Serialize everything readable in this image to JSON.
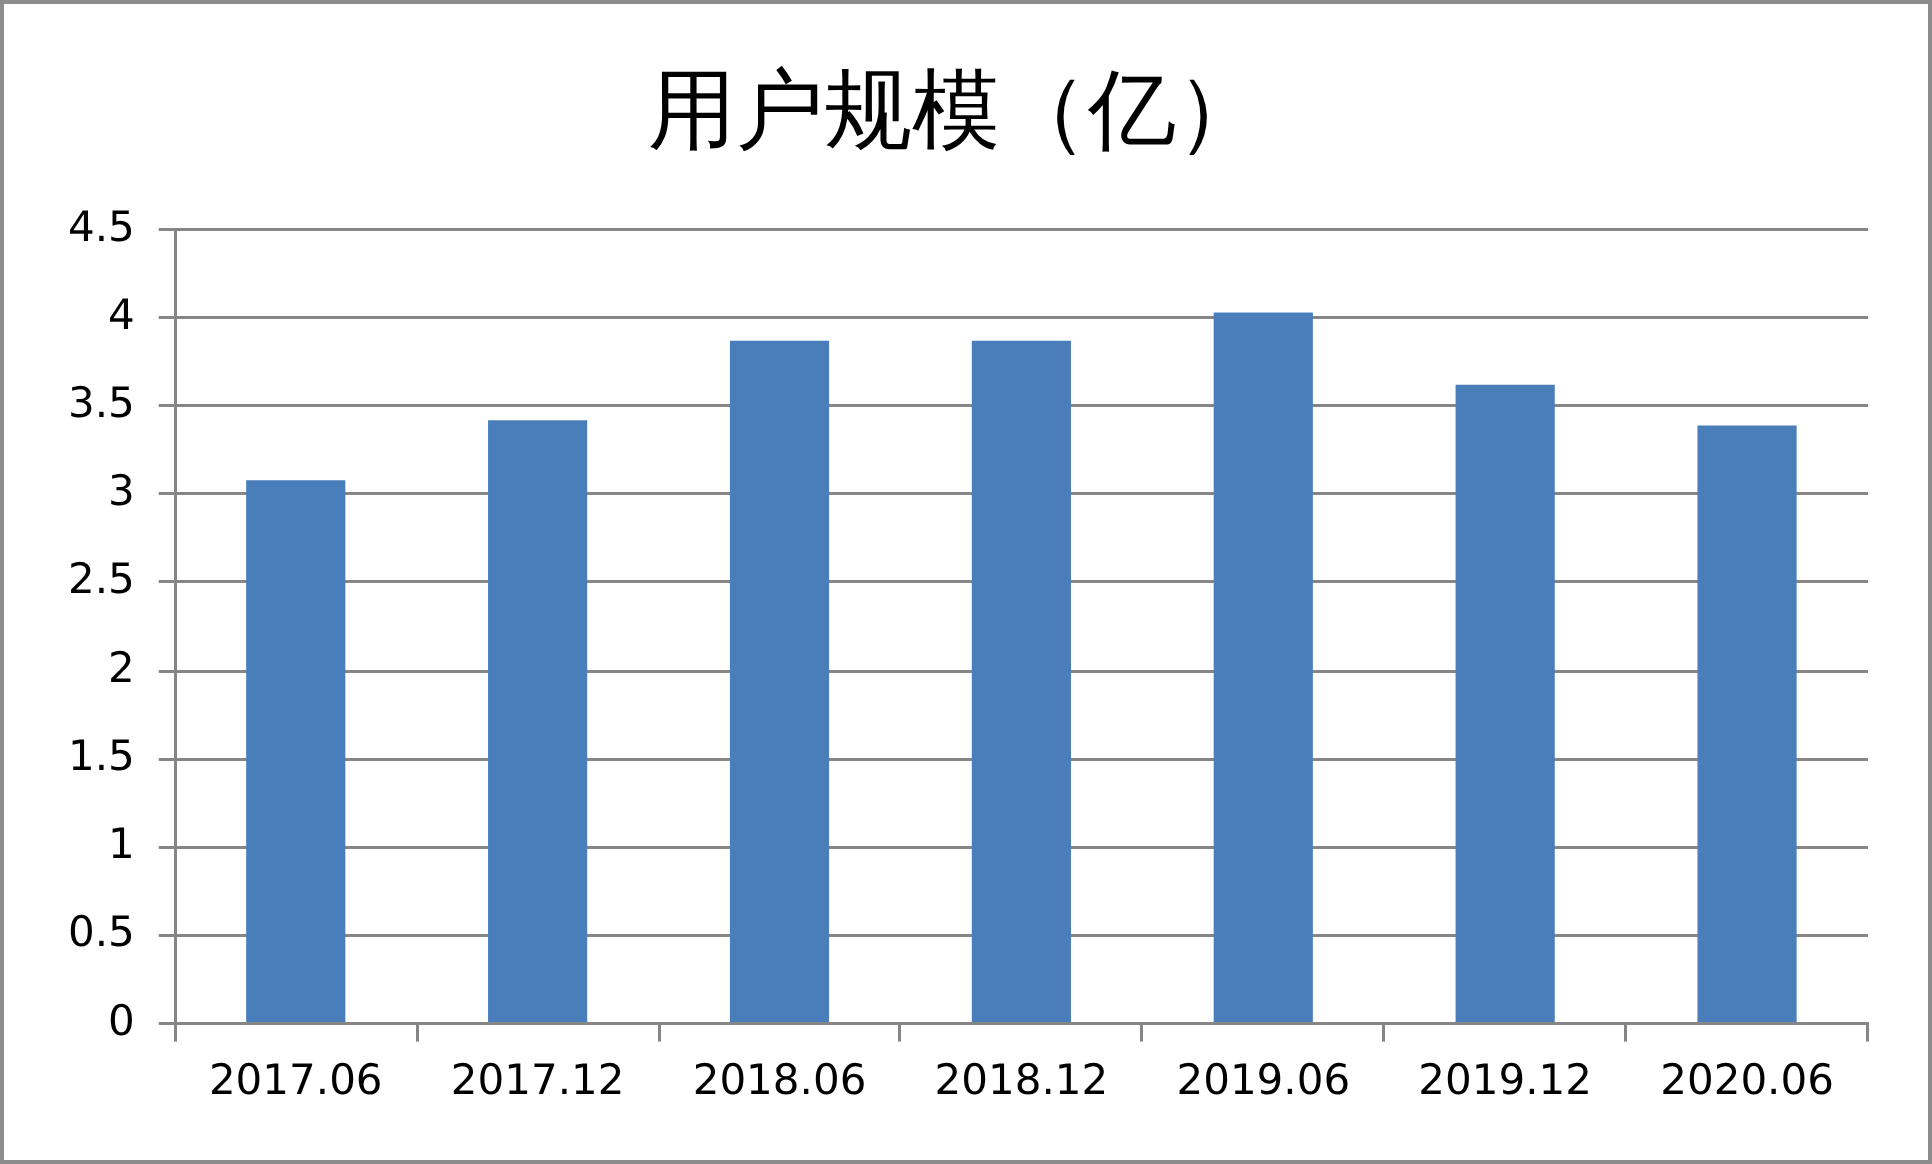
{
  "chart_data": {
    "type": "bar",
    "title": "用户规模（亿）",
    "categories": [
      "2017.06",
      "2017.12",
      "2018.06",
      "2018.12",
      "2019.06",
      "2019.12",
      "2020.06"
    ],
    "values": [
      3.08,
      3.42,
      3.87,
      3.87,
      4.03,
      3.62,
      3.39
    ],
    "color": "#4a7ebb",
    "ylim": [
      0,
      4.5
    ],
    "yticks": [
      0,
      0.5,
      1,
      1.5,
      2,
      2.5,
      3,
      3.5,
      4,
      4.5
    ],
    "grid": "y"
  }
}
